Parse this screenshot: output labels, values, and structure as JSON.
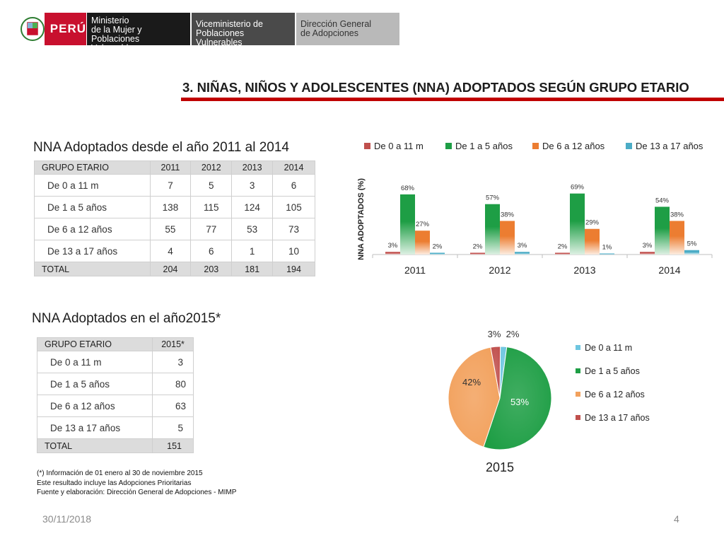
{
  "header": {
    "logo_text": "PERÚ",
    "ministry": [
      "Ministerio",
      "de la Mujer y",
      "Poblaciones Vulnerables"
    ],
    "vice": [
      "Viceministerio de",
      "Poblaciones Vulnerables"
    ],
    "direction": [
      "Dirección General",
      "de Adopciones"
    ]
  },
  "page_title": "3. NIÑAS, NIÑOS Y ADOLESCENTES (NNA) ADOPTADOS SEGÚN GRUPO ETARIO",
  "table1": {
    "title": "NNA Adoptados desde el año 2011 al 2014",
    "headers": [
      "GRUPO ETARIO",
      "2011",
      "2012",
      "2013",
      "2014"
    ],
    "rows": [
      {
        "label": "De 0 a 11 m",
        "values": [
          "7",
          "5",
          "3",
          "6"
        ]
      },
      {
        "label": "De 1 a 5 años",
        "values": [
          "138",
          "115",
          "124",
          "105"
        ]
      },
      {
        "label": "De 6 a 12 años",
        "values": [
          "55",
          "77",
          "53",
          "73"
        ]
      },
      {
        "label": "De 13 a 17 años",
        "values": [
          "4",
          "6",
          "1",
          "10"
        ]
      }
    ],
    "total": {
      "label": "TOTAL",
      "values": [
        "204",
        "203",
        "181",
        "194"
      ]
    }
  },
  "table2": {
    "title": "NNA Adoptados en el año2015*",
    "headers": [
      "GRUPO ETARIO",
      "2015*"
    ],
    "rows": [
      {
        "label": "De 0 a 11 m",
        "value": "3"
      },
      {
        "label": "De 1 a 5 años",
        "value": "80"
      },
      {
        "label": "De 6 a 12 años",
        "value": "63"
      },
      {
        "label": "De 13 a 17 años",
        "value": "5"
      }
    ],
    "total": {
      "label": "TOTAL",
      "value": "151"
    }
  },
  "footnote": [
    "(*) Información de  01 enero al 30 de noviembre 2015",
    "Este resultado incluye las Adopciones Prioritarias",
    "Fuente y elaboración: Dirección General de Adopciones - MIMP"
  ],
  "footer": {
    "date": "30/11/2018",
    "page": "4"
  },
  "chart_data": [
    {
      "type": "bar",
      "title": "",
      "ylabel": "NNA ADOPTADOS (%)",
      "xlabel": "",
      "ylim": [
        0,
        100
      ],
      "categories": [
        "2011",
        "2012",
        "2013",
        "2014"
      ],
      "series": [
        {
          "name": "De 0 a 11 m",
          "color": "#c0504d",
          "values": [
            3,
            2,
            2,
            3
          ],
          "labels": [
            "3%",
            "2%",
            "2%",
            "3%"
          ]
        },
        {
          "name": "De 1 a 5 años",
          "color": "#1e9e45",
          "values": [
            68,
            57,
            69,
            54
          ],
          "labels": [
            "68%",
            "57%",
            "69%",
            "54%"
          ]
        },
        {
          "name": "De 6 a 12 años",
          "color": "#ec7d31",
          "values": [
            27,
            38,
            29,
            38
          ],
          "labels": [
            "27%",
            "38%",
            "29%",
            "38%"
          ]
        },
        {
          "name": "De 13 a 17 años",
          "color": "#4bacc6",
          "values": [
            2,
            3,
            1,
            5
          ],
          "labels": [
            "2%",
            "3%",
            "1%",
            "5%"
          ]
        }
      ],
      "legend": "top"
    },
    {
      "type": "pie",
      "title": "2015",
      "slices": [
        {
          "name": "De 0 a 11 m",
          "value": 2,
          "label": "2%",
          "color": "#6ec6e0"
        },
        {
          "name": "De 1 a 5 años",
          "value": 53,
          "label": "53%",
          "color": "#1e9e45"
        },
        {
          "name": "De 6 a 12 años",
          "value": 42,
          "label": "42%",
          "color": "#f2a15d"
        },
        {
          "name": "De 13 a 17 años",
          "value": 3,
          "label": "3%",
          "color": "#c0504d"
        }
      ],
      "legend": "right"
    }
  ]
}
